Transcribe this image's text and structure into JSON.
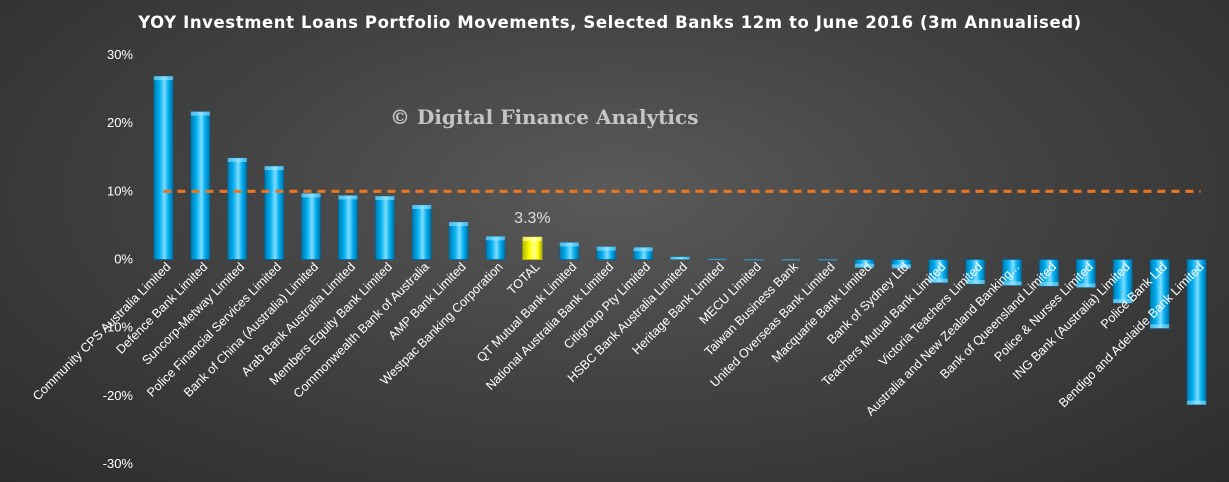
{
  "chart_data": {
    "type": "bar",
    "title": "YOY Investment Loans Portfolio Movements, Selected Banks 12m to June 2016 (3m Annualised)",
    "watermark": "© Digital Finance Analytics",
    "ylim": [
      -0.3,
      0.3
    ],
    "yticks": [
      {
        "value": 0.3,
        "label": "30%"
      },
      {
        "value": 0.2,
        "label": "20%"
      },
      {
        "value": 0.1,
        "label": "10%"
      },
      {
        "value": 0.0,
        "label": "0%"
      },
      {
        "value": -0.1,
        "label": "-10%"
      },
      {
        "value": -0.2,
        "label": "-20%"
      },
      {
        "value": -0.3,
        "label": "-30%"
      }
    ],
    "categories": [
      "Community CPS Australia Limited",
      "Defence Bank Limited",
      "Suncorp-Metway Limited",
      "Police Financial Services Limited",
      "Bank of China (Australia) Limited",
      "Arab Bank Australia Limited",
      "Members Equity Bank Limited",
      "Commonwealth Bank of Australia",
      "AMP Bank Limited",
      "Westpac Banking Corporation",
      "TOTAL",
      "QT Mutual Bank Limited",
      "National Australia Bank Limited",
      "Citigroup Pty Limited",
      "HSBC Bank Australia Limited",
      "Heritage Bank Limited",
      "MECU Limited",
      "Taiwan Business Bank",
      "United Overseas Bank Limited",
      "Macquarie Bank Limited",
      "Bank of Sydney Ltd",
      "Teachers Mutual Bank Limited",
      "Victoria Teachers Limited",
      "Australia and New Zealand Banking...",
      "Bank of Queensland Limited",
      "Police & Nurses Limited",
      "ING Bank (Australia) Limited",
      "Police Bank Ltd",
      "Bendigo and Adelaide Bank Limited"
    ],
    "values": [
      0.269,
      0.217,
      0.149,
      0.137,
      0.097,
      0.094,
      0.093,
      0.08,
      0.055,
      0.034,
      0.033,
      0.025,
      0.019,
      0.018,
      0.004,
      0.001,
      0.0,
      0.0,
      0.0,
      -0.012,
      -0.013,
      -0.034,
      -0.036,
      -0.038,
      -0.039,
      -0.041,
      -0.064,
      -0.101,
      -0.213
    ],
    "highlight_index": 10,
    "data_label": {
      "index": 10,
      "text": "3.3%"
    },
    "reference_line": {
      "value": 0.1,
      "style": "dashed",
      "color": "#E87722"
    },
    "colors": {
      "bar": "#00B0F0",
      "bar_highlight": "#FFFF00",
      "reference_line": "#E87722",
      "text": "#FFFFFF"
    },
    "grid": false,
    "legend": "none"
  }
}
